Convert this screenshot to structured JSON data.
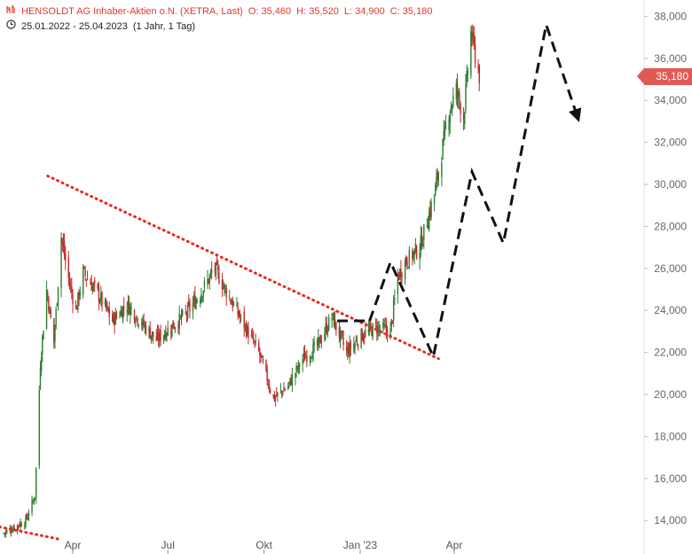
{
  "header": {
    "icon": "ohlc-chart-icon",
    "title": "HENSOLDT AG Inhaber-Aktien o.N. (XETRA, Last)",
    "open": "O: 35,460",
    "high": "H: 35,520",
    "low": "L: 34,900",
    "close": "C: 35,180",
    "clock_icon": "clock-icon",
    "date_range": "25.01.2022 - 25.04.2023",
    "period": "(1 Jahr, 1 Tag)"
  },
  "price_tag": "35,180",
  "colors": {
    "header_red": "#e0392b",
    "up_candle": "#2e7d32",
    "down_candle": "#c62828",
    "trendline": "#e8281e",
    "projection": "#111111",
    "axis_text": "#666666",
    "price_tag": "#e05a55"
  },
  "chart_data": {
    "type": "candlestick",
    "y_axis": {
      "side": "right",
      "ylim": [
        13000,
        39000
      ],
      "ticks": [
        {
          "value": 14000,
          "label": "14,000"
        },
        {
          "value": 16000,
          "label": "16,000"
        },
        {
          "value": 18000,
          "label": "18,000"
        },
        {
          "value": 20000,
          "label": "20,000"
        },
        {
          "value": 22000,
          "label": "22,000"
        },
        {
          "value": 24000,
          "label": "24,000"
        },
        {
          "value": 26000,
          "label": "26,000"
        },
        {
          "value": 28000,
          "label": "28,000"
        },
        {
          "value": 30000,
          "label": "30,000"
        },
        {
          "value": 32000,
          "label": "32,000"
        },
        {
          "value": 34000,
          "label": "34,000"
        },
        {
          "value": 36000,
          "label": "36,000"
        },
        {
          "value": 38000,
          "label": "38,000"
        }
      ]
    },
    "x_axis": {
      "ticks": [
        {
          "date": "2022-04-01",
          "label": "Apr"
        },
        {
          "date": "2022-07-01",
          "label": "Jul"
        },
        {
          "date": "2022-10-01",
          "label": "Okt"
        },
        {
          "date": "2023-01-01",
          "label": "Jan '23"
        },
        {
          "date": "2023-04-01",
          "label": "Apr"
        }
      ]
    },
    "price_path": [
      [
        "2022-01-25",
        13400
      ],
      [
        "2022-02-15",
        14000
      ],
      [
        "2022-02-24",
        15200
      ],
      [
        "2022-03-01",
        21500
      ],
      [
        "2022-03-07",
        25000
      ],
      [
        "2022-03-14",
        22500
      ],
      [
        "2022-03-21",
        27500
      ],
      [
        "2022-03-28",
        25500
      ],
      [
        "2022-04-04",
        24000
      ],
      [
        "2022-04-11",
        25800
      ],
      [
        "2022-04-25",
        24800
      ],
      [
        "2022-05-09",
        23500
      ],
      [
        "2022-05-23",
        24300
      ],
      [
        "2022-06-06",
        23400
      ],
      [
        "2022-06-20",
        22600
      ],
      [
        "2022-07-04",
        23200
      ],
      [
        "2022-07-18",
        23800
      ],
      [
        "2022-08-01",
        24800
      ],
      [
        "2022-08-15",
        26000
      ],
      [
        "2022-08-29",
        24600
      ],
      [
        "2022-09-12",
        23300
      ],
      [
        "2022-09-26",
        22000
      ],
      [
        "2022-10-10",
        19800
      ],
      [
        "2022-10-24",
        20400
      ],
      [
        "2022-11-07",
        21700
      ],
      [
        "2022-11-21",
        22300
      ],
      [
        "2022-12-05",
        23700
      ],
      [
        "2022-12-19",
        22000
      ],
      [
        "2023-01-02",
        22800
      ],
      [
        "2023-01-16",
        23200
      ],
      [
        "2023-01-30",
        23000
      ],
      [
        "2023-02-06",
        25600
      ],
      [
        "2023-02-13",
        26300
      ],
      [
        "2023-02-27",
        27000
      ],
      [
        "2023-03-13",
        29500
      ],
      [
        "2023-03-27",
        33500
      ],
      [
        "2023-04-03",
        34500
      ],
      [
        "2023-04-10",
        33200
      ],
      [
        "2023-04-17",
        37200
      ],
      [
        "2023-04-25",
        35180
      ]
    ],
    "trendlines": [
      {
        "style": "dotted",
        "color": "#e8281e",
        "points": [
          [
            "2022-03-08",
            30400
          ],
          [
            "2023-03-17",
            21700
          ]
        ]
      },
      {
        "style": "dotted",
        "color": "#e8281e",
        "points": [
          [
            "2022-01-01",
            13900
          ],
          [
            "2022-03-20",
            13100
          ]
        ]
      }
    ],
    "projection": {
      "style": "dashed",
      "color": "#111111",
      "segments": [
        {
          "points": [
            [
              "2022-12-10",
              23500
            ],
            [
              "2023-01-10",
              23500
            ]
          ]
        },
        {
          "points": [
            [
              "2023-01-10",
              23500
            ],
            [
              "2023-01-30",
              26300
            ],
            [
              "2023-03-12",
              21800
            ],
            [
              "2023-04-18",
              30600
            ],
            [
              "2023-05-18",
              27200
            ],
            [
              "2023-06-28",
              37600
            ],
            [
              "2023-07-28",
              33200
            ]
          ],
          "arrow_end": true
        }
      ]
    }
  }
}
